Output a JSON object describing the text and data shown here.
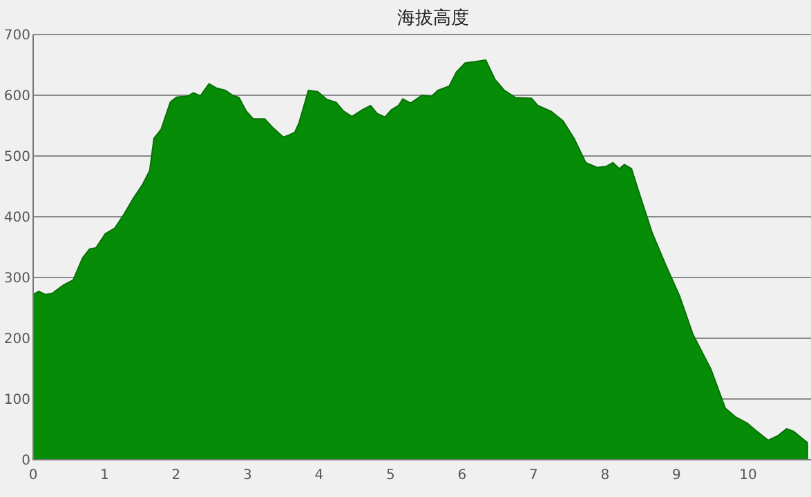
{
  "chart_data": {
    "type": "area",
    "title": "海拔高度",
    "color": "#078c07",
    "grid": "y",
    "x": [
      0,
      0.08,
      0.17,
      0.27,
      0.43,
      0.56,
      0.69,
      0.79,
      0.88,
      1.01,
      1.14,
      1.27,
      1.4,
      1.53,
      1.63,
      1.69,
      1.79,
      1.92,
      2.01,
      2.17,
      2.24,
      2.34,
      2.46,
      2.56,
      2.69,
      2.79,
      2.88,
      2.98,
      3.08,
      3.24,
      3.34,
      3.5,
      3.59,
      3.66,
      3.72,
      3.85,
      3.98,
      4.11,
      4.24,
      4.34,
      4.46,
      4.59,
      4.72,
      4.81,
      4.92,
      5.01,
      5.11,
      5.17,
      5.28,
      5.44,
      5.57,
      5.66,
      5.82,
      5.92,
      6.04,
      6.17,
      6.33,
      6.46,
      6.59,
      6.75,
      6.97,
      7.06,
      7.25,
      7.41,
      7.57,
      7.73,
      7.89,
      8.02,
      8.11,
      8.2,
      8.27,
      8.37,
      8.46,
      8.66,
      8.85,
      9.04,
      9.23,
      9.48,
      9.68,
      9.83,
      9.99,
      10.12,
      10.28,
      10.41,
      10.54,
      10.63,
      10.83
    ],
    "values": [
      272,
      277,
      272,
      274,
      288,
      296,
      332,
      347,
      349,
      372,
      381,
      404,
      430,
      453,
      476,
      529,
      544,
      589,
      597,
      599,
      604,
      599,
      619,
      612,
      608,
      600,
      596,
      574,
      561,
      561,
      548,
      531,
      535,
      539,
      555,
      608,
      606,
      593,
      588,
      574,
      565,
      575,
      583,
      570,
      564,
      576,
      583,
      594,
      587,
      600,
      598,
      608,
      615,
      638,
      653,
      655,
      658,
      626,
      608,
      596,
      595,
      583,
      573,
      558,
      528,
      489,
      481,
      483,
      489,
      479,
      486,
      479,
      445,
      373,
      320,
      270,
      206,
      149,
      85,
      70,
      60,
      47,
      32,
      39,
      51,
      47,
      28
    ],
    "xlim": [
      0,
      10.88
    ],
    "xticks": [
      0,
      1,
      2,
      3,
      4,
      5,
      6,
      7,
      8,
      9,
      10
    ],
    "ylim": [
      0,
      700
    ],
    "yticks": [
      0,
      100,
      200,
      300,
      400,
      500,
      600,
      700
    ]
  }
}
